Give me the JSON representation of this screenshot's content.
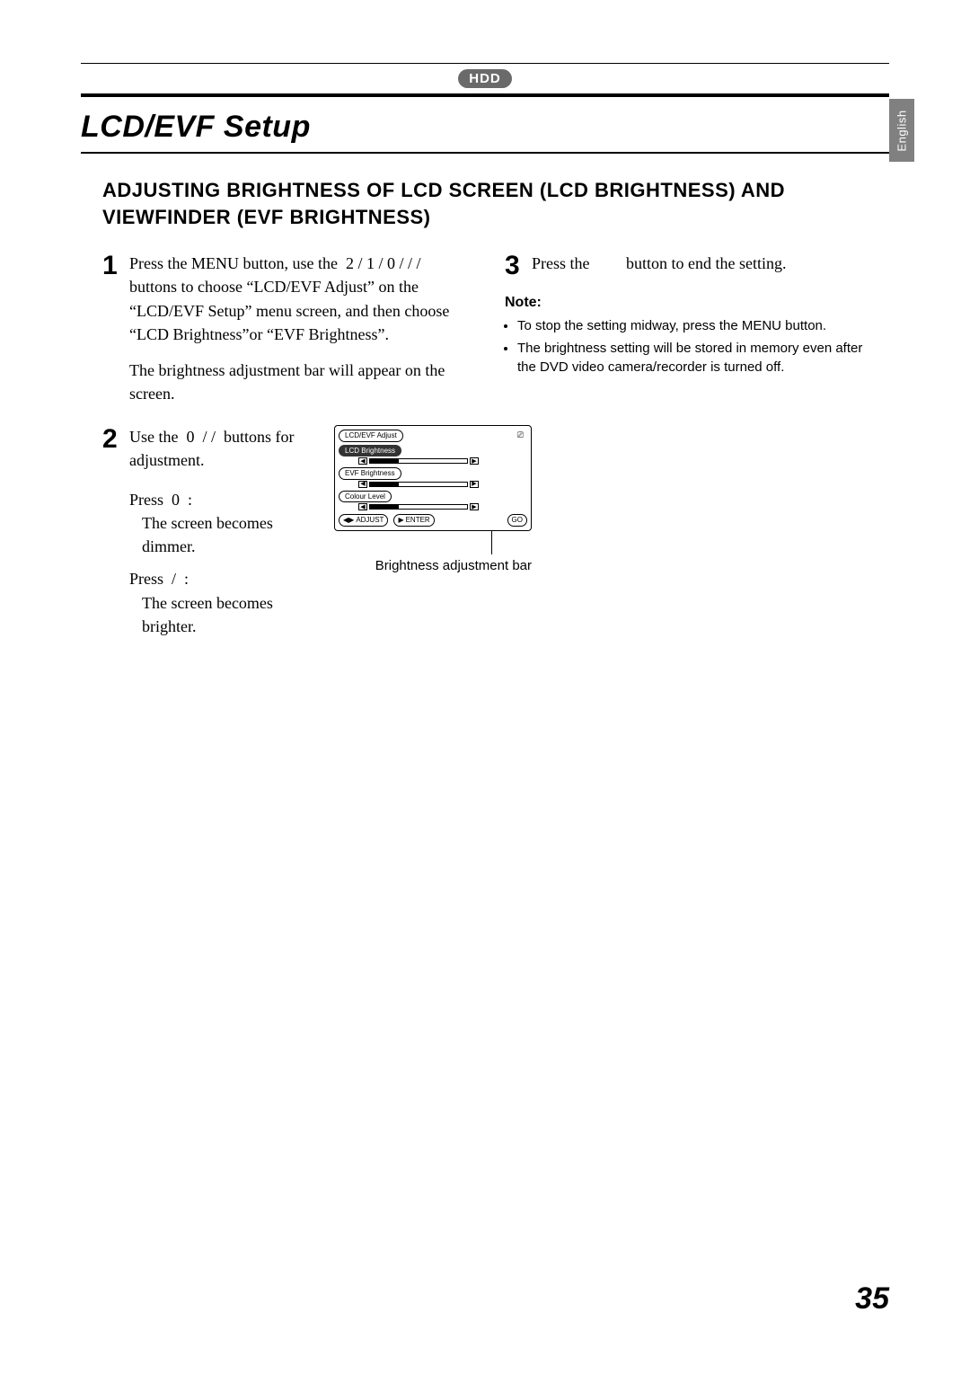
{
  "sideTab": {
    "label": "English"
  },
  "badge": {
    "text": "HDD"
  },
  "title": "LCD/EVF Setup",
  "subheading": "ADJUSTING BRIGHTNESS OF LCD SCREEN (LCD BRIGHTNESS) AND VIEWFINDER (EVF BRIGHTNESS)",
  "steps": {
    "s1": {
      "num": "1",
      "p1": "Press the MENU button, use the  2 / 1 / 0 / / /  buttons to choose “LCD/EVF Adjust” on the “LCD/EVF Setup” menu screen, and then choose “LCD Brightness”or “EVF Brightness”.",
      "p2": "The brightness adjustment bar will appear on the screen."
    },
    "s2": {
      "num": "2",
      "line1": "Use the  0  / /  buttons for adjustment.",
      "press0": "Press  0  :",
      "press0_eff": "The screen becomes dimmer.",
      "pressSlash": "Press  /  :",
      "pressSlash_eff": "The screen becomes brighter."
    },
    "s3": {
      "num": "3",
      "text": "Press the         button to end the setting."
    }
  },
  "screen": {
    "title": "LCD/EVF Adjust",
    "rows": [
      {
        "label": "LCD Brightness",
        "selected": true,
        "fillPct": 30
      },
      {
        "label": "EVF Brightness",
        "selected": false,
        "fillPct": 30
      },
      {
        "label": "Colour Level",
        "selected": false,
        "fillPct": 30
      }
    ],
    "footer": {
      "adjust": "ADJUST",
      "enter": "ENTER",
      "go": "GO"
    }
  },
  "caption": "Brightness adjustment bar",
  "note": {
    "heading": "Note:",
    "items": [
      "To stop the setting midway, press the MENU button.",
      "The brightness setting will be stored in memory even after the DVD video camera/recorder is turned off."
    ]
  },
  "pageNumber": "35",
  "colors": {
    "badgeBg": "#6a6a6a",
    "sideTabBg": "#808080",
    "text": "#000000",
    "bg": "#ffffff"
  }
}
